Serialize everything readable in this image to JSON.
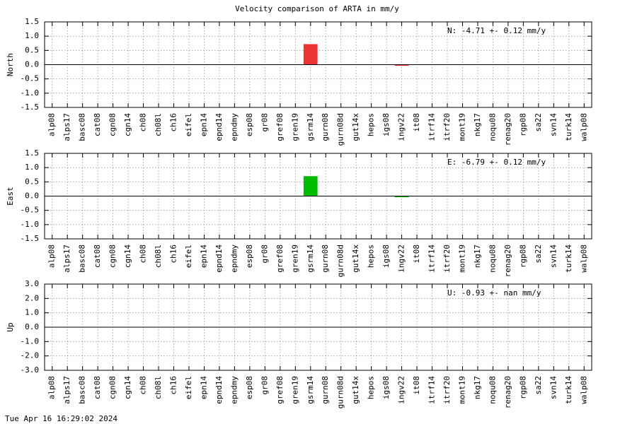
{
  "title": "Velocity comparison of ARTA in mm/y",
  "timestamp": "Tue Apr 16 16:29:02 2024",
  "chart_data": [
    {
      "type": "bar",
      "ylabel": "North",
      "annotation": "N:  -4.71 +-  0.12 mm/y",
      "color": "#ee3333",
      "grid": true,
      "categories": [
        "alp08",
        "alps17",
        "basc08",
        "cat08",
        "cgn08",
        "cgn14",
        "ch08",
        "ch08l",
        "ch16",
        "eifel",
        "epn14",
        "epnd14",
        "epndmy",
        "esp08",
        "gr08",
        "gref08",
        "gren19",
        "gsrm14",
        "gurn08",
        "gurn08d",
        "gut14x",
        "hepos",
        "igs08",
        "ingv22",
        "it08",
        "itrf14",
        "itrf20",
        "mont19",
        "nkg17",
        "noqu08",
        "renag20",
        "rgp08",
        "sa22",
        "svn14",
        "turk14",
        "walp08"
      ],
      "values": [
        null,
        null,
        null,
        null,
        null,
        null,
        null,
        null,
        null,
        null,
        null,
        null,
        null,
        null,
        null,
        null,
        null,
        0.72,
        null,
        null,
        null,
        null,
        null,
        -0.04,
        null,
        null,
        null,
        null,
        null,
        null,
        null,
        null,
        null,
        null,
        null,
        null
      ],
      "ylim": [
        -1.5,
        1.5
      ],
      "yticks": [
        -1.5,
        {
          "value": -1,
          "label": "-1.0"
        },
        -0.5,
        {
          "value": 0,
          "label": "0.0"
        },
        0.5,
        {
          "value": 1,
          "label": "1.0"
        },
        1.5
      ]
    },
    {
      "type": "bar",
      "ylabel": "East",
      "annotation": "E:  -6.79 +-  0.12 mm/y",
      "color": "#00bb00",
      "grid": true,
      "categories": [
        "alp08",
        "alps17",
        "basc08",
        "cat08",
        "cgn08",
        "cgn14",
        "ch08",
        "ch08l",
        "ch16",
        "eifel",
        "epn14",
        "epnd14",
        "epndmy",
        "esp08",
        "gr08",
        "gref08",
        "gren19",
        "gsrm14",
        "gurn08",
        "gurn08d",
        "gut14x",
        "hepos",
        "igs08",
        "ingv22",
        "it08",
        "itrf14",
        "itrf20",
        "mont19",
        "nkg17",
        "noqu08",
        "renag20",
        "rgp08",
        "sa22",
        "svn14",
        "turk14",
        "walp08"
      ],
      "values": [
        null,
        null,
        null,
        null,
        null,
        null,
        null,
        null,
        null,
        null,
        null,
        null,
        null,
        null,
        null,
        null,
        null,
        0.7,
        null,
        null,
        null,
        null,
        null,
        -0.04,
        null,
        null,
        null,
        null,
        null,
        null,
        null,
        null,
        null,
        null,
        null,
        null
      ],
      "ylim": [
        -1.5,
        1.5
      ],
      "yticks": [
        -1.5,
        {
          "value": -1,
          "label": "-1.0"
        },
        -0.5,
        {
          "value": 0,
          "label": "0.0"
        },
        0.5,
        {
          "value": 1,
          "label": "1.0"
        },
        1.5
      ]
    },
    {
      "type": "bar",
      "ylabel": "Up",
      "annotation": "U:  -0.93 +-   nan mm/y",
      "color": "#3333ee",
      "grid": true,
      "categories": [
        "alp08",
        "alps17",
        "basc08",
        "cat08",
        "cgn08",
        "cgn14",
        "ch08",
        "ch08l",
        "ch16",
        "eifel",
        "epn14",
        "epnd14",
        "epndmy",
        "esp08",
        "gr08",
        "gref08",
        "gren19",
        "gsrm14",
        "gurn08",
        "gurn08d",
        "gut14x",
        "hepos",
        "igs08",
        "ingv22",
        "it08",
        "itrf14",
        "itrf20",
        "mont19",
        "nkg17",
        "noqu08",
        "renag20",
        "rgp08",
        "sa22",
        "svn14",
        "turk14",
        "walp08"
      ],
      "values": [
        null,
        null,
        null,
        null,
        null,
        null,
        null,
        null,
        null,
        null,
        null,
        null,
        null,
        null,
        null,
        null,
        null,
        null,
        null,
        null,
        null,
        null,
        null,
        null,
        null,
        null,
        null,
        null,
        null,
        null,
        null,
        null,
        null,
        null,
        null,
        null
      ],
      "ylim": [
        -3,
        3
      ],
      "yticks": [
        {
          "value": -3,
          "label": "-3.0"
        },
        {
          "value": -2,
          "label": "-2.0"
        },
        {
          "value": -1,
          "label": "-1.0"
        },
        {
          "value": 0,
          "label": "0.0"
        },
        {
          "value": 1,
          "label": "1.0"
        },
        {
          "value": 2,
          "label": "2.0"
        },
        {
          "value": 3,
          "label": "3.0"
        }
      ]
    }
  ]
}
